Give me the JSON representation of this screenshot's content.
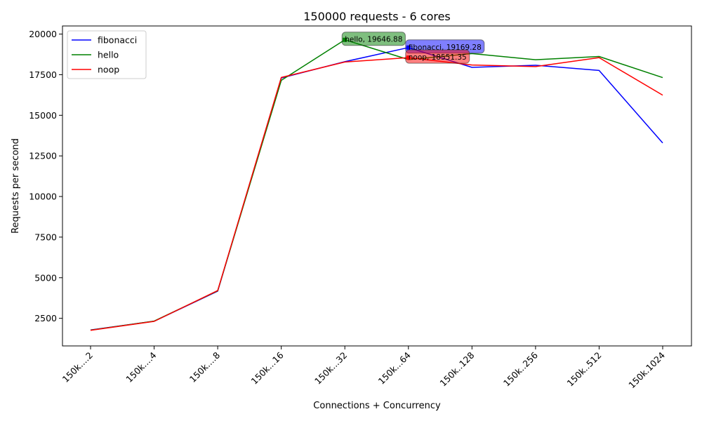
{
  "chart_data": {
    "type": "line",
    "title": "150000 requests - 6 cores",
    "xlabel": "Connections + Concurrency",
    "ylabel": "Requests per second",
    "categories": [
      "150k....2",
      "150k....4",
      "150k....8",
      "150k...16",
      "150k...32",
      "150k...64",
      "150k..128",
      "150k..256",
      "150k..512",
      "150k.1024"
    ],
    "ylim": [
      800,
      20500
    ],
    "yticks": [
      2500,
      5000,
      7500,
      10000,
      12500,
      15000,
      17500,
      20000
    ],
    "grid": false,
    "legend_position": "top-left",
    "series": [
      {
        "name": "fibonacci",
        "color": "#0000ff",
        "values": [
          1780,
          2320,
          4170,
          17300,
          18300,
          19169.28,
          17950,
          18080,
          17760,
          13300
        ]
      },
      {
        "name": "hello",
        "color": "#008000",
        "values": [
          1770,
          2330,
          4190,
          17150,
          19646.88,
          18430,
          18800,
          18420,
          18620,
          17320
        ]
      },
      {
        "name": "noop",
        "color": "#ff0000",
        "values": [
          1760,
          2310,
          4210,
          17330,
          18280,
          18551.35,
          18100,
          18000,
          18550,
          16240
        ]
      }
    ],
    "annotations": [
      {
        "series": 1,
        "index": 4,
        "text": "hello, 19646.88",
        "color": "#008000"
      },
      {
        "series": 0,
        "index": 5,
        "text": "fibonacci, 19169.28",
        "color": "#0000ff"
      },
      {
        "series": 2,
        "index": 5,
        "text": "noop, 18551.35",
        "color": "#ff0000"
      }
    ]
  }
}
